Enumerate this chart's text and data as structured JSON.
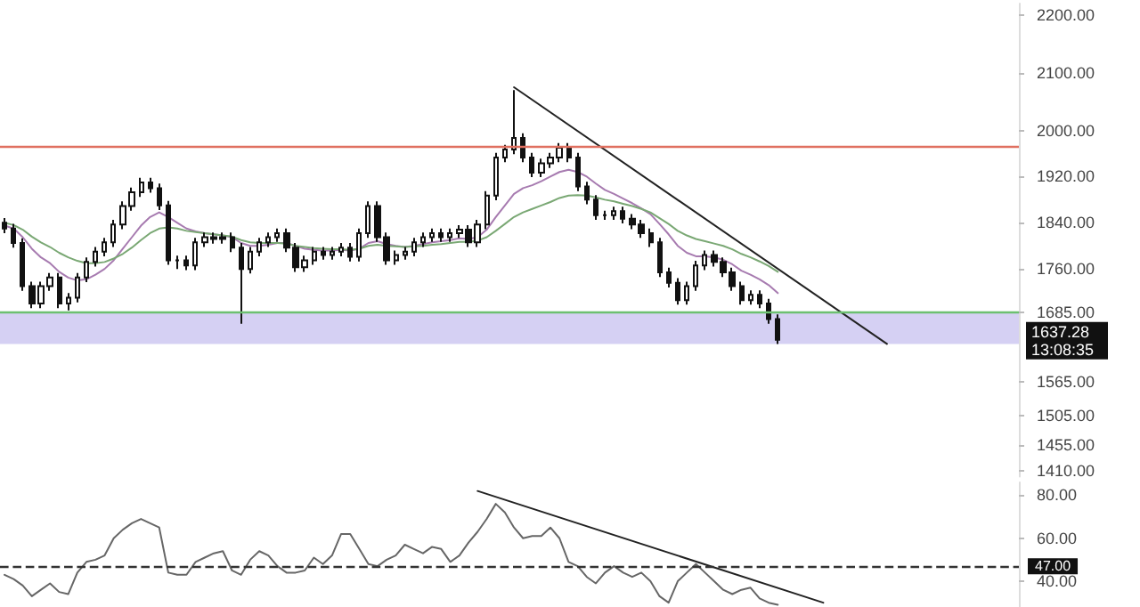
{
  "chart_data": [
    {
      "type": "candlestick",
      "color": "#111111",
      "categories": [
        null,
        null,
        null,
        null,
        null,
        null,
        null,
        null,
        null,
        null,
        null,
        null,
        null,
        null,
        null,
        null,
        null,
        null,
        null,
        null,
        null,
        null,
        null,
        null,
        null,
        null,
        null,
        null,
        null,
        null,
        null,
        null,
        null,
        null,
        null,
        null,
        null,
        null,
        null,
        null,
        null,
        null,
        null,
        null,
        null,
        null,
        null,
        null,
        null,
        null,
        null,
        null,
        null,
        null,
        null,
        null,
        null,
        null,
        null,
        null,
        null,
        null,
        null,
        null,
        null,
        null,
        null,
        null,
        null,
        null,
        null,
        null,
        null,
        null,
        null,
        null,
        null,
        null,
        null,
        null,
        null,
        null,
        null,
        null,
        null,
        null,
        null,
        null,
        null,
        null,
        null,
        null,
        null,
        null,
        null,
        null,
        null,
        null,
        null,
        null,
        null,
        null,
        null,
        null,
        null,
        null,
        null,
        null,
        null,
        null,
        null,
        null
      ],
      "ohlc": [
        [
          1840,
          1848,
          1822,
          1830
        ],
        [
          1830,
          1838,
          1797,
          1805
        ],
        [
          1805,
          1813,
          1722,
          1730
        ],
        [
          1730,
          1738,
          1692,
          1700
        ],
        [
          1700,
          1738,
          1692,
          1730
        ],
        [
          1730,
          1753,
          1722,
          1745
        ],
        [
          1745,
          1753,
          1692,
          1700
        ],
        [
          1700,
          1718,
          1688,
          1710
        ],
        [
          1710,
          1753,
          1702,
          1745
        ],
        [
          1745,
          1780,
          1737,
          1772
        ],
        [
          1772,
          1798,
          1764,
          1790
        ],
        [
          1790,
          1814,
          1782,
          1806
        ],
        [
          1806,
          1845,
          1798,
          1837
        ],
        [
          1837,
          1877,
          1829,
          1869
        ],
        [
          1869,
          1901,
          1861,
          1893
        ],
        [
          1893,
          1918,
          1885,
          1910
        ],
        [
          1910,
          1918,
          1892,
          1900
        ],
        [
          1900,
          1908,
          1862,
          1870
        ],
        [
          1870,
          1878,
          1767,
          1775
        ],
        [
          1775,
          1783,
          1760,
          1775
        ],
        [
          1775,
          1783,
          1758,
          1766
        ],
        [
          1766,
          1814,
          1758,
          1806
        ],
        [
          1806,
          1823,
          1798,
          1815
        ],
        [
          1815,
          1823,
          1804,
          1812
        ],
        [
          1812,
          1823,
          1804,
          1815
        ],
        [
          1815,
          1823,
          1789,
          1797
        ],
        [
          1797,
          1805,
          1665,
          1760
        ],
        [
          1760,
          1798,
          1752,
          1790
        ],
        [
          1790,
          1814,
          1782,
          1806
        ],
        [
          1806,
          1823,
          1798,
          1815
        ],
        [
          1815,
          1830,
          1807,
          1822
        ],
        [
          1822,
          1830,
          1789,
          1797
        ],
        [
          1797,
          1805,
          1755,
          1763
        ],
        [
          1763,
          1783,
          1755,
          1775
        ],
        [
          1775,
          1798,
          1767,
          1790
        ],
        [
          1790,
          1798,
          1776,
          1784
        ],
        [
          1784,
          1798,
          1776,
          1790
        ],
        [
          1790,
          1805,
          1782,
          1797
        ],
        [
          1797,
          1805,
          1773,
          1781
        ],
        [
          1781,
          1830,
          1773,
          1822
        ],
        [
          1822,
          1877,
          1814,
          1869
        ],
        [
          1869,
          1877,
          1807,
          1815
        ],
        [
          1815,
          1823,
          1767,
          1775
        ],
        [
          1775,
          1792,
          1767,
          1784
        ],
        [
          1784,
          1798,
          1776,
          1790
        ],
        [
          1790,
          1814,
          1782,
          1806
        ],
        [
          1806,
          1823,
          1798,
          1815
        ],
        [
          1815,
          1830,
          1807,
          1822
        ],
        [
          1822,
          1830,
          1807,
          1815
        ],
        [
          1815,
          1830,
          1807,
          1822
        ],
        [
          1822,
          1836,
          1814,
          1828
        ],
        [
          1828,
          1836,
          1798,
          1806
        ],
        [
          1806,
          1845,
          1798,
          1837
        ],
        [
          1837,
          1895,
          1829,
          1887
        ],
        [
          1887,
          1961,
          1879,
          1953
        ],
        [
          1953,
          1975,
          1945,
          1967
        ],
        [
          1967,
          2070,
          1959,
          1987
        ],
        [
          1987,
          1995,
          1945,
          1953
        ],
        [
          1953,
          1961,
          1919,
          1927
        ],
        [
          1927,
          1951,
          1919,
          1943
        ],
        [
          1943,
          1961,
          1935,
          1953
        ],
        [
          1953,
          1978,
          1945,
          1970
        ],
        [
          1970,
          1978,
          1945,
          1953
        ],
        [
          1953,
          1961,
          1895,
          1903
        ],
        [
          1903,
          1911,
          1872,
          1880
        ],
        [
          1880,
          1888,
          1845,
          1853
        ],
        [
          1853,
          1861,
          1845,
          1853
        ],
        [
          1853,
          1868,
          1845,
          1860
        ],
        [
          1860,
          1868,
          1839,
          1847
        ],
        [
          1847,
          1855,
          1829,
          1837
        ],
        [
          1837,
          1845,
          1814,
          1822
        ],
        [
          1822,
          1830,
          1798,
          1806
        ],
        [
          1806,
          1814,
          1746,
          1754
        ],
        [
          1754,
          1762,
          1728,
          1736
        ],
        [
          1736,
          1744,
          1698,
          1706
        ],
        [
          1706,
          1738,
          1698,
          1730
        ],
        [
          1730,
          1774,
          1722,
          1766
        ],
        [
          1766,
          1792,
          1758,
          1784
        ],
        [
          1784,
          1792,
          1764,
          1772
        ],
        [
          1772,
          1780,
          1746,
          1754
        ],
        [
          1754,
          1762,
          1722,
          1730
        ],
        [
          1730,
          1738,
          1698,
          1706
        ],
        [
          1706,
          1723,
          1698,
          1715
        ],
        [
          1715,
          1723,
          1692,
          1700
        ],
        [
          1700,
          1708,
          1665,
          1673
        ],
        [
          1673,
          1681,
          1630,
          1637
        ],
        null,
        null,
        null,
        null,
        null,
        null,
        null,
        null,
        null,
        null,
        null,
        null,
        null,
        null,
        null,
        null,
        null,
        null,
        null,
        null,
        null,
        null,
        null,
        null,
        null,
        null
      ],
      "series": [
        {
          "type": "line",
          "color": "#a77bb0",
          "values": [
            1835,
            1830,
            1815,
            1795,
            1780,
            1770,
            1755,
            1745,
            1740,
            1742,
            1750,
            1760,
            1775,
            1795,
            1815,
            1835,
            1850,
            1858,
            1850,
            1840,
            1830,
            1825,
            1822,
            1820,
            1818,
            1815,
            1805,
            1800,
            1800,
            1802,
            1805,
            1805,
            1800,
            1795,
            1793,
            1792,
            1792,
            1793,
            1792,
            1795,
            1805,
            1808,
            1803,
            1800,
            1798,
            1800,
            1803,
            1806,
            1808,
            1810,
            1813,
            1812,
            1815,
            1828,
            1850,
            1870,
            1890,
            1900,
            1905,
            1912,
            1920,
            1928,
            1932,
            1928,
            1920,
            1908,
            1897,
            1890,
            1882,
            1874,
            1865,
            1855,
            1838,
            1820,
            1800,
            1788,
            1782,
            1782,
            1780,
            1776,
            1768,
            1757,
            1750,
            1742,
            1732,
            1718,
            null,
            null,
            null,
            null,
            null,
            null,
            null,
            null,
            null,
            null,
            null,
            null,
            null,
            null,
            null,
            null,
            null,
            null,
            null,
            null,
            null,
            null,
            null,
            null,
            null,
            null
          ]
        },
        {
          "type": "line",
          "color": "#7aa874",
          "values": [
            1840,
            1836,
            1828,
            1816,
            1806,
            1798,
            1788,
            1780,
            1774,
            1770,
            1770,
            1772,
            1778,
            1786,
            1797,
            1810,
            1822,
            1830,
            1832,
            1830,
            1826,
            1824,
            1822,
            1820,
            1818,
            1816,
            1810,
            1806,
            1805,
            1805,
            1805,
            1804,
            1800,
            1798,
            1796,
            1795,
            1794,
            1794,
            1793,
            1795,
            1800,
            1802,
            1800,
            1799,
            1798,
            1799,
            1800,
            1802,
            1803,
            1805,
            1807,
            1807,
            1809,
            1815,
            1826,
            1838,
            1850,
            1858,
            1864,
            1870,
            1876,
            1883,
            1887,
            1888,
            1887,
            1884,
            1880,
            1877,
            1873,
            1869,
            1864,
            1858,
            1848,
            1838,
            1826,
            1818,
            1812,
            1808,
            1804,
            1800,
            1794,
            1786,
            1780,
            1773,
            1765,
            1755,
            null,
            null,
            null,
            null,
            null,
            null,
            null,
            null,
            null,
            null,
            null,
            null,
            null,
            null,
            null,
            null,
            null,
            null,
            null,
            null,
            null,
            null,
            null,
            null,
            null,
            null
          ]
        },
        {
          "type": "line",
          "color": "#222222",
          "values": [
            null,
            null,
            null,
            null,
            null,
            null,
            null,
            null,
            null,
            null,
            null,
            null,
            null,
            null,
            null,
            null,
            null,
            null,
            null,
            null,
            null,
            null,
            null,
            null,
            null,
            null,
            null,
            null,
            null,
            null,
            null,
            null,
            null,
            null,
            null,
            null,
            null,
            null,
            null,
            null,
            null,
            null,
            null,
            null,
            null,
            null,
            null,
            null,
            null,
            null,
            null,
            null,
            null,
            null,
            null,
            null,
            2075,
            null,
            null,
            null,
            null,
            null,
            null,
            null,
            null,
            null,
            null,
            null,
            null,
            null,
            null,
            null,
            null,
            null,
            null,
            null,
            null,
            null,
            null,
            null,
            null,
            null,
            null,
            null,
            null,
            null,
            null,
            null,
            null,
            null,
            null,
            null,
            null,
            null,
            null,
            null,
            null,
            1630,
            null,
            null,
            null,
            null,
            null,
            null,
            null,
            null,
            null,
            null,
            null,
            null,
            null,
            null
          ]
        }
      ],
      "ylim": [
        1400,
        2220
      ],
      "yticks": [
        {
          "value": 1410,
          "label": "1410.00"
        },
        {
          "value": 1455,
          "label": "1455.00"
        },
        {
          "value": 1505,
          "label": "1505.00"
        },
        {
          "value": 1565,
          "label": "1565.00"
        },
        {
          "value": 1685,
          "label": "1685.00"
        },
        {
          "value": 1760,
          "label": "1760.00"
        },
        {
          "value": 1840,
          "label": "1840.00"
        },
        {
          "value": 1920,
          "label": "1920.00"
        },
        {
          "value": 2000,
          "label": "2000.00"
        },
        {
          "value": 2100,
          "label": "2100.00"
        },
        {
          "value": 2200,
          "label": "2200.00"
        }
      ],
      "tick_labels": "y",
      "ref_lines": [
        {
          "axis": "y",
          "value": 1973,
          "color": "#e07060"
        },
        {
          "axis": "y",
          "value": 1685,
          "color": "#6cc070"
        }
      ],
      "bands": [
        {
          "axis": "y",
          "from": 1630,
          "to": 1685,
          "color": "#cbc4f0"
        }
      ],
      "annotations": [
        "1637.28",
        "13:08:35"
      ]
    },
    {
      "type": "line",
      "color": "#666666",
      "categories": [
        null,
        null,
        null,
        null,
        null,
        null,
        null,
        null,
        null,
        null,
        null,
        null,
        null,
        null,
        null,
        null,
        null,
        null,
        null,
        null,
        null,
        null,
        null,
        null,
        null,
        null,
        null,
        null,
        null,
        null,
        null,
        null,
        null,
        null,
        null,
        null,
        null,
        null,
        null,
        null,
        null,
        null,
        null,
        null,
        null,
        null,
        null,
        null,
        null,
        null,
        null,
        null,
        null,
        null,
        null,
        null,
        null,
        null,
        null,
        null,
        null,
        null,
        null,
        null,
        null,
        null,
        null,
        null,
        null,
        null,
        null,
        null,
        null,
        null,
        null,
        null,
        null,
        null,
        null,
        null,
        null,
        null,
        null,
        null,
        null,
        null,
        null,
        null,
        null,
        null,
        null,
        null,
        null,
        null,
        null,
        null,
        null,
        null,
        null,
        null,
        null,
        null,
        null,
        null,
        null,
        null,
        null,
        null,
        null,
        null,
        null,
        null
      ],
      "values": [
        43,
        41,
        38,
        33,
        36,
        39,
        35,
        34,
        44,
        49,
        50,
        52,
        60,
        64,
        67,
        69,
        67,
        65,
        44,
        43,
        43,
        49,
        51,
        53,
        54,
        45,
        43,
        50,
        54,
        52,
        47,
        44,
        44,
        45,
        51,
        48,
        52,
        62,
        62,
        55,
        48,
        47,
        50,
        52,
        57,
        55,
        53,
        56,
        55,
        49,
        52,
        58,
        63,
        69,
        76,
        72,
        65,
        60,
        61,
        61,
        65,
        60,
        49,
        47,
        42,
        39,
        44,
        47,
        44,
        42,
        44,
        40,
        33,
        30,
        40,
        44,
        48,
        44,
        40,
        36,
        34,
        36,
        37,
        32,
        30,
        29,
        null,
        null,
        null,
        null,
        null,
        null,
        null,
        null,
        null,
        null,
        null,
        null,
        null,
        null,
        null,
        null,
        null,
        null,
        null,
        null,
        null,
        null,
        null,
        null,
        null,
        null
      ],
      "series": [
        {
          "type": "line",
          "color": "#222222",
          "values": [
            null,
            null,
            null,
            null,
            null,
            null,
            null,
            null,
            null,
            null,
            null,
            null,
            null,
            null,
            null,
            null,
            null,
            null,
            null,
            null,
            null,
            null,
            null,
            null,
            null,
            null,
            null,
            null,
            null,
            null,
            null,
            null,
            null,
            null,
            null,
            null,
            null,
            null,
            null,
            null,
            null,
            null,
            null,
            null,
            null,
            null,
            null,
            null,
            null,
            null,
            null,
            null,
            82,
            null,
            null,
            null,
            null,
            null,
            null,
            null,
            null,
            null,
            null,
            null,
            null,
            null,
            null,
            null,
            null,
            null,
            null,
            null,
            null,
            null,
            null,
            null,
            null,
            null,
            null,
            null,
            null,
            null,
            null,
            null,
            null,
            null,
            null,
            null,
            null,
            null,
            30,
            null,
            null,
            null,
            null,
            null,
            null,
            null,
            null,
            null,
            null,
            null,
            null,
            null,
            null,
            null,
            null,
            null,
            null,
            null,
            null,
            null
          ]
        }
      ],
      "ylim": [
        28,
        86
      ],
      "yticks": [
        {
          "value": 40,
          "label": "40.00"
        },
        {
          "value": 60,
          "label": "60.00"
        },
        {
          "value": 80,
          "label": "80.00"
        }
      ],
      "tick_labels": "y",
      "ref_lines": [
        {
          "axis": "y",
          "value": 47,
          "label": "47.00",
          "color": "#333333",
          "line_style": "dashed"
        }
      ]
    }
  ]
}
